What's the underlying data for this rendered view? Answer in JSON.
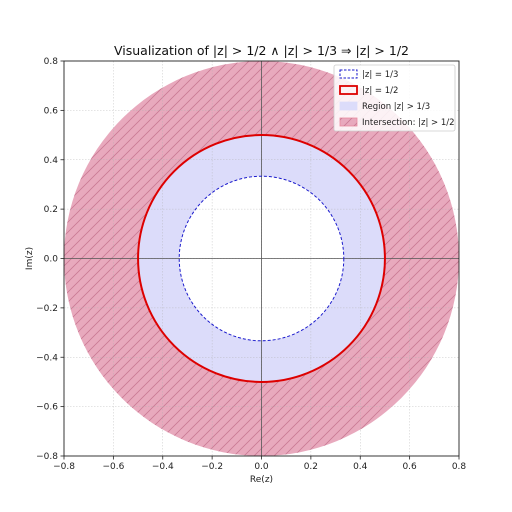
{
  "chart_data": {
    "type": "area",
    "title": "Visualization of |z| > 1/2 ∧ |z| > 1/3 ⇒ |z| > 1/2",
    "xlabel": "Re(z)",
    "ylabel": "Im(z)",
    "xlim": [
      -0.8,
      0.8
    ],
    "ylim": [
      -0.8,
      0.8
    ],
    "xticks": [
      -0.8,
      -0.6,
      -0.4,
      -0.2,
      0.0,
      0.2,
      0.4,
      0.6,
      0.8
    ],
    "yticks": [
      -0.8,
      -0.6,
      -0.4,
      -0.2,
      0.0,
      0.2,
      0.4,
      0.6,
      0.8
    ],
    "xtick_labels": [
      "−0.8",
      "−0.6",
      "−0.4",
      "−0.2",
      "0.0",
      "0.2",
      "0.4",
      "0.6",
      "0.8"
    ],
    "ytick_labels": [
      "−0.8",
      "−0.6",
      "−0.4",
      "−0.2",
      "0.0",
      "0.2",
      "0.4",
      "0.6",
      "0.8"
    ],
    "grid": true,
    "legend_position": "top-right",
    "series": [
      {
        "name": "|z| = 1/3",
        "kind": "circle",
        "radius": 0.3333,
        "style": "dashed",
        "color": "#1a1acc"
      },
      {
        "name": "|z| = 1/2",
        "kind": "circle",
        "radius": 0.5,
        "style": "solid",
        "color": "#dd0000"
      },
      {
        "name": "Region |z| > 1/3",
        "kind": "region",
        "inner_radius": 0.3333,
        "color": "#dcdcfa"
      },
      {
        "name": "Intersection: |z| > 1/2",
        "kind": "region",
        "inner_radius": 0.5,
        "outer_radius": 0.8,
        "color": "#e8a9bd",
        "hatch": true
      }
    ]
  }
}
